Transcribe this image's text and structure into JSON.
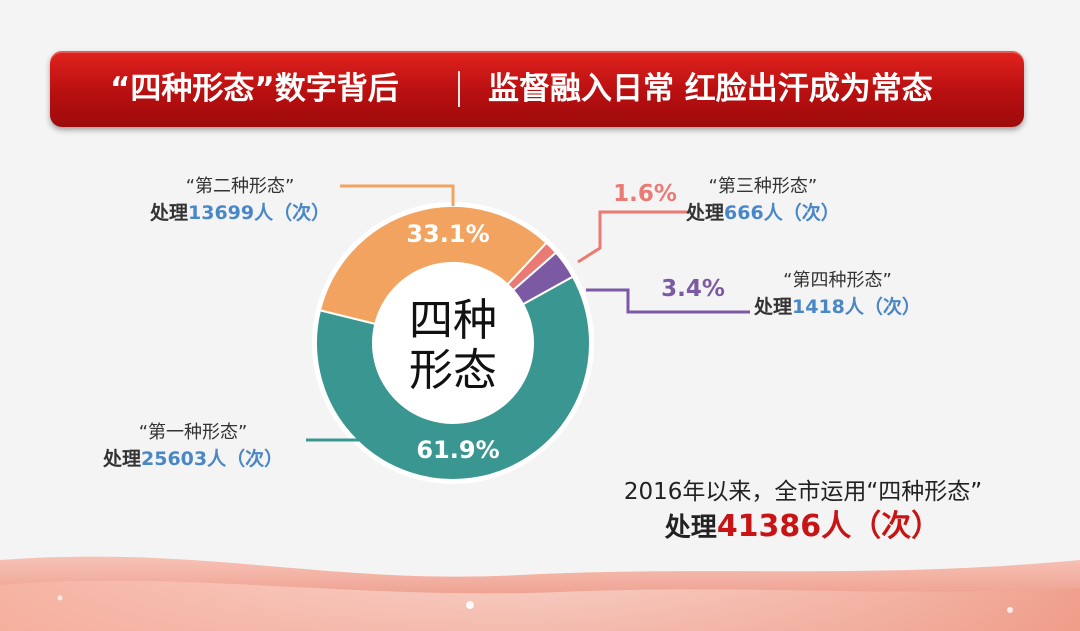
{
  "header": {
    "left": "“四种形态”数字背后",
    "right": "监督融入日常 红脸出汗成为常态"
  },
  "colors": {
    "first": "#3a9690",
    "second": "#f1a35f",
    "third": "#ea7a73",
    "fourth": "#7c5aa3",
    "number_blue": "#4a87c7",
    "total_red": "#c81414"
  },
  "chart_data": {
    "type": "pie",
    "center_label": [
      "四种",
      "形态"
    ],
    "slices": [
      {
        "id": "first",
        "name": "“第一种形态”",
        "prefix": "处理",
        "count": "25603",
        "unit": "人（次）",
        "percent": 61.9,
        "percent_label": "61.9%"
      },
      {
        "id": "second",
        "name": "“第二种形态”",
        "prefix": "处理",
        "count": "13699",
        "unit": "人（次）",
        "percent": 33.1,
        "percent_label": "33.1%"
      },
      {
        "id": "third",
        "name": "“第三种形态”",
        "prefix": "处理",
        "count": "666",
        "unit": "人（次）",
        "percent": 1.6,
        "percent_label": "1.6%"
      },
      {
        "id": "fourth",
        "name": "“第四种形态”",
        "prefix": "处理",
        "count": "1418",
        "unit": "人（次）",
        "percent": 3.4,
        "percent_label": "3.4%"
      }
    ]
  },
  "summary": {
    "line1": "2016年以来，全市运用“四种形态”",
    "prefix": "处理",
    "total": "41386",
    "suffix": "人（次）"
  }
}
